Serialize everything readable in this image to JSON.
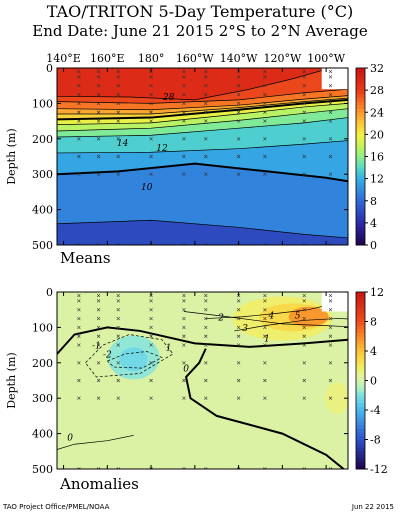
{
  "title_line1": "TAO/TRITON 5-Day Temperature (°C)",
  "title_line2": "End Date: June 21 2015   2°S to 2°N Average",
  "footer_left": "TAO Project Office/PMEL/NOAA",
  "footer_right": "Jun 22 2015",
  "chart_data": [
    {
      "type": "heatmap",
      "panel_label": "Means",
      "ylabel": "Depth (m)",
      "x_tick_labels": [
        "140°E",
        "160°E",
        "180°",
        "160°W",
        "140°W",
        "120°W",
        "100°W"
      ],
      "x_tick_values": [
        140,
        160,
        180,
        200,
        220,
        240,
        260
      ],
      "xlim": [
        137,
        270
      ],
      "y_tick_labels": [
        "0",
        "100",
        "200",
        "300",
        "400",
        "500"
      ],
      "ylim": [
        0,
        500
      ],
      "colorbar_ticks": [
        0,
        4,
        8,
        12,
        16,
        20,
        24,
        28,
        32
      ],
      "colorbar_labels": [
        "0",
        "4",
        "8",
        "12",
        "16",
        "20",
        "24",
        "28",
        "32"
      ],
      "contour_labels": [
        {
          "text": "28",
          "lon": 188,
          "depth": 90
        },
        {
          "text": "14",
          "lon": 167,
          "depth": 220
        },
        {
          "text": "12",
          "lon": 185,
          "depth": 235
        },
        {
          "text": "10",
          "lon": 178,
          "depth": 345
        }
      ],
      "isotherms": [
        {
          "value": 28,
          "bold": false,
          "points": [
            [
              137,
              80
            ],
            [
              170,
              82
            ],
            [
              200,
              90
            ],
            [
              225,
              60
            ],
            [
              245,
              30
            ],
            [
              262,
              0
            ]
          ]
        },
        {
          "value": 26,
          "bold": false,
          "points": [
            [
              137,
              95
            ],
            [
              180,
              100
            ],
            [
              220,
              90
            ],
            [
              250,
              70
            ],
            [
              270,
              60
            ]
          ]
        },
        {
          "value": 24,
          "bold": false,
          "points": [
            [
              137,
              115
            ],
            [
              180,
              118
            ],
            [
              220,
              105
            ],
            [
              250,
              88
            ],
            [
              270,
              78
            ]
          ]
        },
        {
          "value": 22,
          "bold": false,
          "points": [
            [
              137,
              130
            ],
            [
              180,
              130
            ],
            [
              220,
              112
            ],
            [
              250,
              95
            ],
            [
              270,
              85
            ]
          ]
        },
        {
          "value": 20,
          "bold": true,
          "points": [
            [
              137,
              145
            ],
            [
              180,
              140
            ],
            [
              220,
              118
            ],
            [
              250,
              100
            ],
            [
              270,
              90
            ]
          ]
        },
        {
          "value": 18,
          "bold": false,
          "points": [
            [
              137,
              160
            ],
            [
              180,
              155
            ],
            [
              220,
              130
            ],
            [
              250,
              110
            ],
            [
              270,
              100
            ]
          ]
        },
        {
          "value": 16,
          "bold": false,
          "points": [
            [
              137,
              178
            ],
            [
              180,
              170
            ],
            [
              220,
              148
            ],
            [
              250,
              128
            ],
            [
              270,
              115
            ]
          ]
        },
        {
          "value": 14,
          "bold": false,
          "points": [
            [
              137,
              195
            ],
            [
              180,
              190
            ],
            [
              220,
              170
            ],
            [
              250,
              155
            ],
            [
              270,
              140
            ]
          ]
        },
        {
          "value": 12,
          "bold": false,
          "points": [
            [
              137,
              240
            ],
            [
              180,
              238
            ],
            [
              220,
              228
            ],
            [
              250,
              215
            ],
            [
              270,
              205
            ]
          ]
        },
        {
          "value": 10,
          "bold": true,
          "points": [
            [
              137,
              300
            ],
            [
              165,
              292
            ],
            [
              200,
              270
            ],
            [
              230,
              290
            ],
            [
              260,
              310
            ],
            [
              270,
              320
            ]
          ]
        },
        {
          "value": 8,
          "bold": false,
          "points": [
            [
              137,
              440
            ],
            [
              180,
              430
            ],
            [
              220,
              450
            ],
            [
              250,
              470
            ],
            [
              270,
              480
            ]
          ]
        }
      ]
    },
    {
      "type": "heatmap",
      "panel_label": "Anomalies",
      "ylabel": "Depth (m)",
      "x_tick_labels": [
        "140°E",
        "160°E",
        "180°",
        "160°W",
        "140°W",
        "120°W",
        "100°W"
      ],
      "x_tick_values": [
        140,
        160,
        180,
        200,
        220,
        240,
        260
      ],
      "xlim": [
        137,
        270
      ],
      "y_tick_labels": [
        "0",
        "100",
        "200",
        "300",
        "400",
        "500"
      ],
      "ylim": [
        0,
        500
      ],
      "colorbar_ticks": [
        -12,
        -8,
        -4,
        0,
        4,
        8,
        12
      ],
      "colorbar_labels": [
        "-12",
        "-8",
        "-4",
        "0",
        "4",
        "8",
        "12"
      ],
      "contour_labels": [
        {
          "text": "-1",
          "lon": 155,
          "depth": 160
        },
        {
          "text": "1",
          "lon": 188,
          "depth": 165
        },
        {
          "text": "-2",
          "lon": 160,
          "depth": 185
        },
        {
          "text": "2",
          "lon": 212,
          "depth": 80
        },
        {
          "text": "3",
          "lon": 223,
          "depth": 110
        },
        {
          "text": "4",
          "lon": 235,
          "depth": 75
        },
        {
          "text": "5",
          "lon": 247,
          "depth": 75
        },
        {
          "text": "1",
          "lon": 233,
          "depth": 140
        },
        {
          "text": "0",
          "lon": 196,
          "depth": 225
        },
        {
          "text": "0",
          "lon": 143,
          "depth": 420
        }
      ],
      "anomaly_contours": [
        {
          "value": 1,
          "dashed": false,
          "bold": false,
          "points": [
            [
              195,
              55
            ],
            [
              215,
              70
            ],
            [
              240,
              90
            ],
            [
              260,
              95
            ],
            [
              270,
              98
            ]
          ]
        },
        {
          "value": 2,
          "dashed": false,
          "bold": false,
          "points": [
            [
              205,
              75
            ],
            [
              222,
              70
            ],
            [
              238,
              60
            ],
            [
              252,
              50
            ],
            [
              262,
              35
            ]
          ]
        },
        {
          "value": 3,
          "dashed": false,
          "bold": false,
          "points": [
            [
              218,
              110
            ],
            [
              232,
              95
            ],
            [
              250,
              80
            ],
            [
              265,
              75
            ],
            [
              270,
              76
            ]
          ]
        },
        {
          "value": 0,
          "dashed": false,
          "bold": true,
          "points": [
            [
              137,
              175
            ],
            [
              145,
              120
            ],
            [
              160,
              100
            ],
            [
              175,
              110
            ],
            [
              200,
              145
            ],
            [
              225,
              155
            ],
            [
              250,
              145
            ],
            [
              270,
              135
            ]
          ]
        },
        {
          "value": -1,
          "dashed": true,
          "bold": false,
          "points": [
            [
              150,
              200
            ],
            [
              158,
              150
            ],
            [
              170,
              120
            ],
            [
              185,
              135
            ],
            [
              190,
              175
            ],
            [
              175,
              230
            ],
            [
              155,
              240
            ],
            [
              150,
              200
            ]
          ]
        },
        {
          "value": -2,
          "dashed": true,
          "bold": false,
          "points": [
            [
              160,
              195
            ],
            [
              168,
              175
            ],
            [
              178,
              168
            ],
            [
              185,
              185
            ],
            [
              176,
              215
            ],
            [
              163,
              212
            ],
            [
              160,
              195
            ]
          ]
        },
        {
          "value": 0,
          "dashed": false,
          "bold": true,
          "points": [
            [
              205,
              160
            ],
            [
              202,
              200
            ],
            [
              196,
              240
            ],
            [
              198,
              300
            ],
            [
              210,
              350
            ],
            [
              240,
              400
            ],
            [
              260,
              460
            ],
            [
              268,
              500
            ]
          ]
        },
        {
          "value": 0,
          "dashed": false,
          "bold": false,
          "points": [
            [
              137,
              445
            ],
            [
              145,
              430
            ],
            [
              160,
              420
            ],
            [
              172,
              405
            ]
          ]
        }
      ]
    }
  ]
}
